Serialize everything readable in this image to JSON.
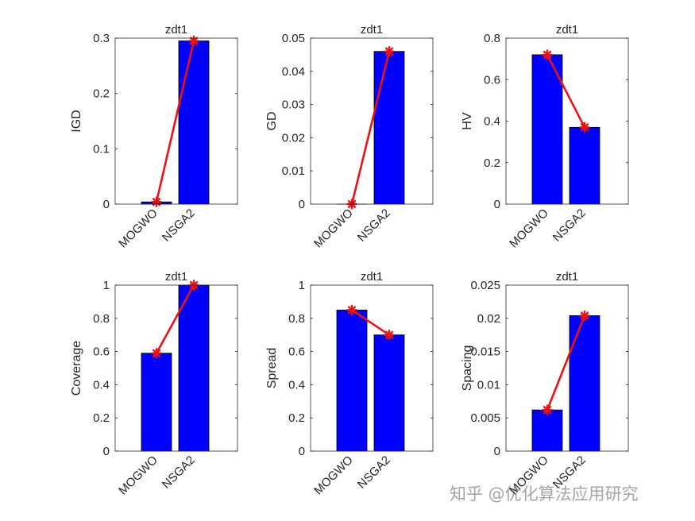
{
  "colors": {
    "bar": "#0000ff",
    "line": "#ee1111",
    "axis": "#262626"
  },
  "watermark": "知乎 @优化算法应用研究",
  "chart_data": [
    {
      "type": "bar",
      "title": "zdt1",
      "ylabel": "IGD",
      "categories": [
        "MOGWO",
        "NSGA2"
      ],
      "values": [
        0.004,
        0.295
      ],
      "ylim": [
        0,
        0.3
      ],
      "yticks": [
        0,
        0.1,
        0.2,
        0.3
      ],
      "yticklabels": [
        "0",
        "0.1",
        "0.2",
        "0.3"
      ]
    },
    {
      "type": "bar",
      "title": "zdt1",
      "ylabel": "GD",
      "categories": [
        "MOGWO",
        "NSGA2"
      ],
      "values": [
        0.0,
        0.046
      ],
      "ylim": [
        0,
        0.05
      ],
      "yticks": [
        0,
        0.01,
        0.02,
        0.03,
        0.04,
        0.05
      ],
      "yticklabels": [
        "0",
        "0.01",
        "0.02",
        "0.03",
        "0.04",
        "0.05"
      ]
    },
    {
      "type": "bar",
      "title": "zdt1",
      "ylabel": "HV",
      "categories": [
        "MOGWO",
        "NSGA2"
      ],
      "values": [
        0.72,
        0.37
      ],
      "ylim": [
        0,
        0.8
      ],
      "yticks": [
        0,
        0.2,
        0.4,
        0.6,
        0.8
      ],
      "yticklabels": [
        "0",
        "0.2",
        "0.4",
        "0.6",
        "0.8"
      ]
    },
    {
      "type": "bar",
      "title": "zdt1",
      "ylabel": "Coverage",
      "categories": [
        "MOGWO",
        "NSGA2"
      ],
      "values": [
        0.59,
        1.0
      ],
      "ylim": [
        0,
        1
      ],
      "yticks": [
        0,
        0.2,
        0.4,
        0.6,
        0.8,
        1
      ],
      "yticklabels": [
        "0",
        "0.2",
        "0.4",
        "0.6",
        "0.8",
        "1"
      ]
    },
    {
      "type": "bar",
      "title": "zdt1",
      "ylabel": "Spread",
      "categories": [
        "MOGWO",
        "NSGA2"
      ],
      "values": [
        0.85,
        0.7
      ],
      "ylim": [
        0,
        1
      ],
      "yticks": [
        0,
        0.2,
        0.4,
        0.6,
        0.8,
        1
      ],
      "yticklabels": [
        "0",
        "0.2",
        "0.4",
        "0.6",
        "0.8",
        "1"
      ]
    },
    {
      "type": "bar",
      "title": "zdt1",
      "ylabel": "Spacing",
      "categories": [
        "MOGWO",
        "NSGA2"
      ],
      "values": [
        0.0062,
        0.0204
      ],
      "ylim": [
        0,
        0.025
      ],
      "yticks": [
        0,
        0.005,
        0.01,
        0.015,
        0.02,
        0.025
      ],
      "yticklabels": [
        "0",
        "0.005",
        "0.01",
        "0.015",
        "0.02",
        "0.025"
      ]
    }
  ]
}
